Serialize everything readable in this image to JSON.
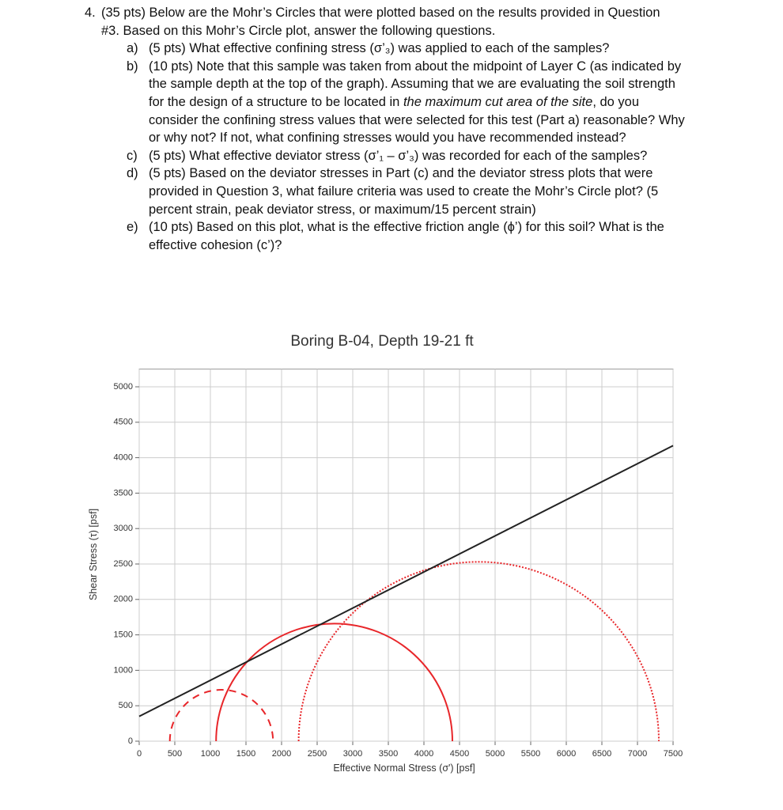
{
  "question": {
    "number": "4.",
    "text": "(35 pts) Below are the Mohr’s Circles that were plotted based on the results provided in Question #3. Based on this Mohr’s Circle plot, answer the following questions.",
    "items": [
      {
        "label": "a)",
        "text": [
          "(5 pts) What effective confining stress (σ’₃) was applied to each of the samples?"
        ]
      },
      {
        "label": "b)",
        "text": [
          "(10 pts) Note that this sample was taken from about the midpoint of Layer C (as indicated by the sample depth at the top of the graph). Assuming that we are evaluating the soil strength for the design of a structure to be located in ",
          "the maximum cut area of the site",
          ", do you consider the confining stress values that were selected for this test (Part a) reasonable? Why or why not? If not, what confining stresses would you have recommended instead?"
        ]
      },
      {
        "label": "c)",
        "text": [
          "(5 pts) What effective deviator stress (σ’₁ – σ’₃) was recorded for each of the samples?"
        ]
      },
      {
        "label": "d)",
        "text": [
          "(5 pts) Based on the deviator stresses in Part (c) and the deviator stress plots that were provided in Question 3, what failure criteria was used to create the Mohr’s Circle plot? (5 percent strain, peak deviator stress, or maximum/15 percent strain)"
        ]
      },
      {
        "label": "e)",
        "text": [
          "(10 pts) Based on this plot, what is the effective friction angle (ϕ’) for this soil? What is the effective cohesion (c’)?"
        ]
      }
    ]
  },
  "chart_data": {
    "type": "mohr",
    "title": "Boring B-04, Depth 19-21 ft",
    "x_label": "Effective Normal Stress (σ') [psf]",
    "y_label": "Shear Stress (τ) [psf]",
    "xlim": [
      0,
      7500
    ],
    "ylim": [
      0,
      5250
    ],
    "xticks": [
      0,
      500,
      1000,
      1500,
      2000,
      2500,
      3000,
      3500,
      4000,
      4500,
      5000,
      5500,
      6000,
      6500,
      7000,
      7500
    ],
    "yticks": [
      0,
      500,
      1000,
      1500,
      2000,
      2500,
      3000,
      3500,
      4000,
      4500,
      5000
    ],
    "grid": true,
    "circles": [
      {
        "sigma3": 430,
        "sigma1": 1880,
        "color": "#e8262a",
        "style": "dashed"
      },
      {
        "sigma3": 1080,
        "sigma1": 4400,
        "color": "#e8262a",
        "style": "solid"
      },
      {
        "sigma3": 2240,
        "sigma1": 7300,
        "color": "#e8262a",
        "style": "dotted"
      }
    ],
    "envelope": {
      "x": [
        0,
        7500
      ],
      "y": [
        350,
        4170
      ],
      "color": "#222222"
    }
  }
}
